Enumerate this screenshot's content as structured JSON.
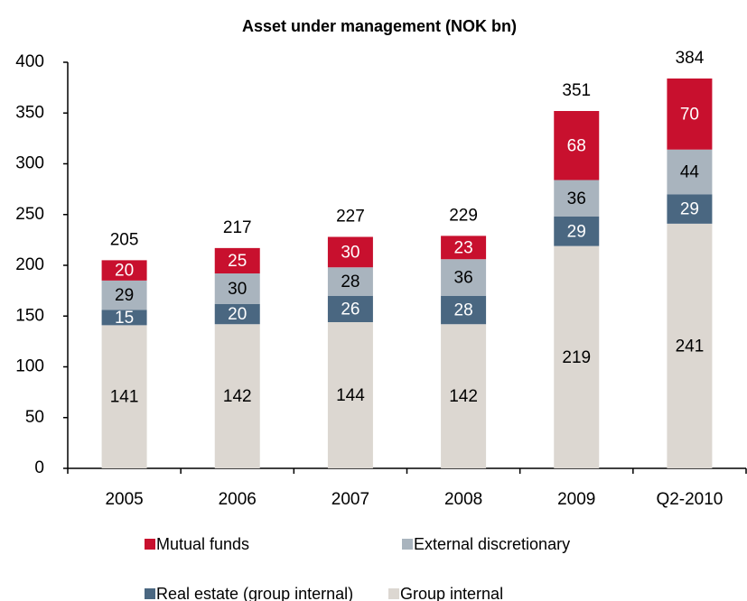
{
  "chart_data": {
    "type": "stacked_bar",
    "title": "Asset under management (NOK bn)",
    "categories": [
      "2005",
      "2006",
      "2007",
      "2008",
      "2009",
      "Q2-2010"
    ],
    "series": [
      {
        "name": "Group internal",
        "color": "#dcd7d1",
        "label_color": "#000000",
        "values": [
          141,
          142,
          144,
          142,
          219,
          241
        ]
      },
      {
        "name": "Real estate (group internal)",
        "color": "#4a6781",
        "label_color": "#ffffff",
        "values": [
          15,
          20,
          26,
          28,
          29,
          29
        ]
      },
      {
        "name": "External discretionary",
        "color": "#a9b4be",
        "label_color": "#000000",
        "values": [
          29,
          30,
          28,
          36,
          36,
          44
        ]
      },
      {
        "name": "Mutual funds",
        "color": "#c8102e",
        "label_color": "#ffffff",
        "values": [
          20,
          25,
          30,
          23,
          68,
          70
        ]
      }
    ],
    "totals": [
      205,
      217,
      227,
      229,
      351,
      384
    ],
    "ylim": [
      0,
      400
    ],
    "yticks": [
      0,
      50,
      100,
      150,
      200,
      250,
      300,
      350,
      400
    ],
    "grid": false
  }
}
